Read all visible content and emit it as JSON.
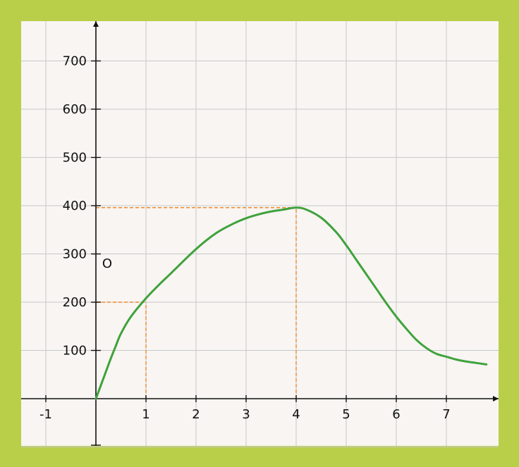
{
  "colors": {
    "frame": "#b9cf4a",
    "background": "#f8f5f2",
    "grid": "#c9c9c9",
    "axis": "#111111",
    "curve": "#3fa23c",
    "guides": "#f08a2c"
  },
  "chart_data": {
    "type": "line",
    "title": "",
    "xlabel": "",
    "ylabel": "",
    "xlim": [
      -1.5,
      8.1
    ],
    "ylim": [
      -100,
      750
    ],
    "grid": true,
    "origin_label": "O",
    "x_ticks": [
      "-1",
      "1",
      "2",
      "3",
      "4",
      "5",
      "6",
      "7"
    ],
    "y_ticks": [
      "100",
      "200",
      "300",
      "400",
      "500",
      "600",
      "700"
    ],
    "series": [
      {
        "name": "",
        "x": [
          0,
          0.1,
          0.2,
          0.3,
          0.4,
          0.5,
          0.7,
          1,
          1.25,
          1.5,
          2,
          2.4,
          2.75,
          3,
          3.25,
          3.5,
          3.75,
          4,
          4.2,
          4.5,
          4.8,
          5,
          5.2,
          5.4,
          5.6,
          5.8,
          6,
          6.2,
          6.4,
          6.6,
          6.8,
          7,
          7.2,
          7.4,
          7.6,
          7.8
        ],
        "y": [
          0,
          28,
          56,
          84,
          110,
          135,
          170,
          208,
          235,
          260,
          310,
          343,
          363,
          374,
          382,
          388,
          392,
          396,
          392,
          375,
          345,
          318,
          288,
          258,
          228,
          198,
          170,
          145,
          122,
          105,
          93,
          87,
          81,
          77,
          74,
          71
        ]
      }
    ],
    "reference_points": [
      {
        "x": 1,
        "y": 200
      },
      {
        "x": 4,
        "y": 396
      }
    ]
  }
}
